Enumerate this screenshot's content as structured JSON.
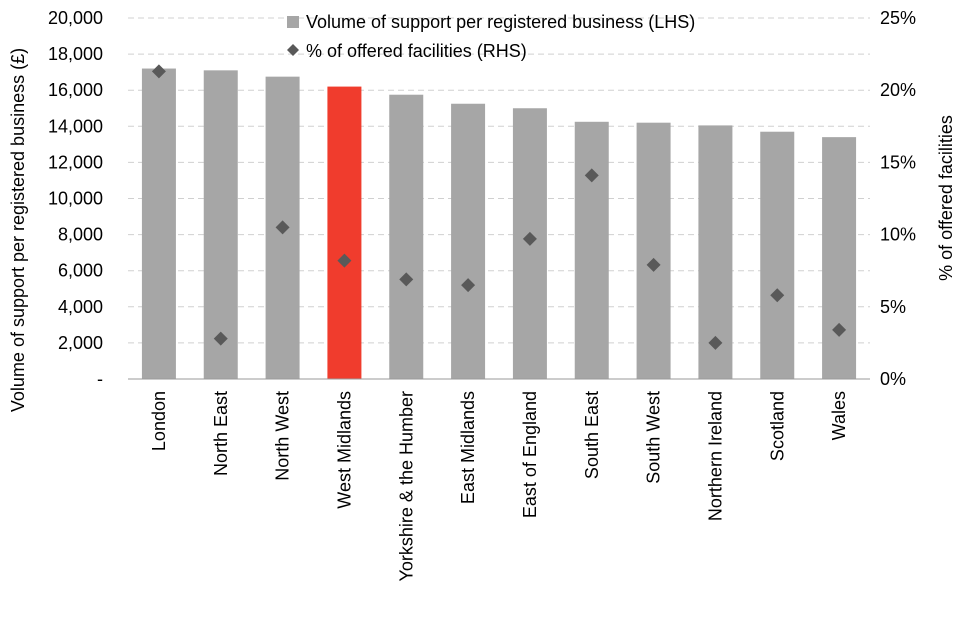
{
  "chart_data": {
    "type": "bar",
    "categories": [
      "London",
      "North East",
      "North West",
      "West Midlands",
      "Yorkshire & the Humber",
      "East Midlands",
      "East of England",
      "South East",
      "South West",
      "Northern Ireland",
      "Scotland",
      "Wales"
    ],
    "series": [
      {
        "name": "Volume of support per registered business (LHS)",
        "type": "bar",
        "axis": "left",
        "values": [
          17200,
          17100,
          16750,
          16200,
          15750,
          15250,
          15000,
          14250,
          14200,
          14050,
          13700,
          13400
        ],
        "color": "#a6a6a6",
        "highlight_category": "West Midlands",
        "highlight_color": "#f03c2d"
      },
      {
        "name": "% of offered facilities (RHS)",
        "type": "scatter",
        "axis": "right",
        "marker": "diamond",
        "values": [
          21.3,
          2.8,
          10.5,
          8.2,
          6.9,
          6.5,
          9.7,
          14.1,
          7.9,
          2.5,
          5.8,
          3.4
        ],
        "color": "#595959"
      }
    ],
    "ylabel": "Volume  of support per registered business (£)",
    "ylabel_right": "% of offered facilities",
    "ylim": [
      0,
      20000
    ],
    "ylim_right": [
      0,
      25
    ],
    "yticks": [
      "-",
      "2,000",
      "4,000",
      "6,000",
      "8,000",
      "10,000",
      "12,000",
      "14,000",
      "16,000",
      "18,000",
      "20,000"
    ],
    "yticks_right": [
      "0%",
      "5%",
      "10%",
      "15%",
      "20%",
      "25%"
    ],
    "grid": true,
    "legend_position": "top-center"
  }
}
